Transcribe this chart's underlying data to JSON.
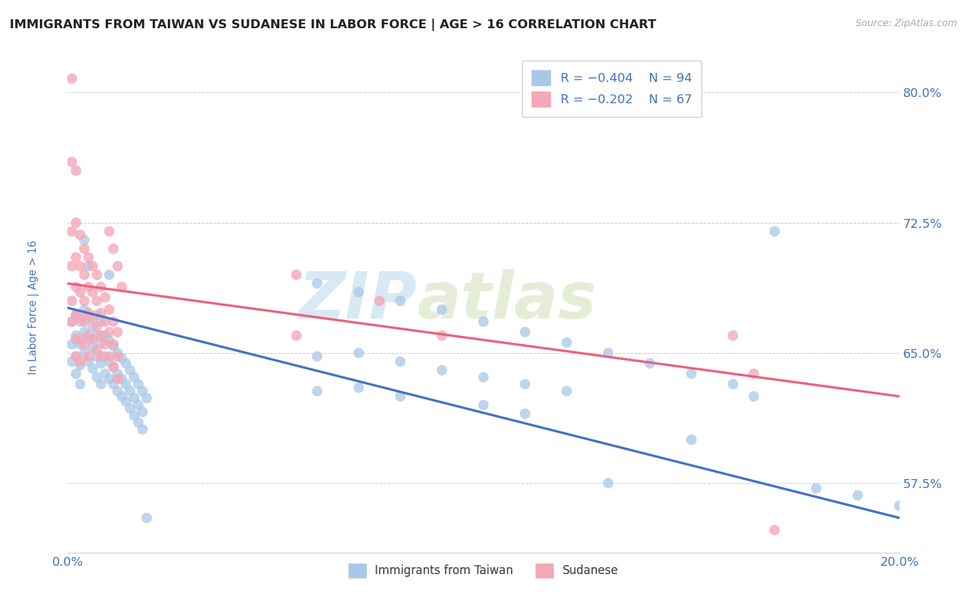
{
  "title": "IMMIGRANTS FROM TAIWAN VS SUDANESE IN LABOR FORCE | AGE > 16 CORRELATION CHART",
  "source": "Source: ZipAtlas.com",
  "ylabel": "In Labor Force | Age > 16",
  "xlim": [
    0.0,
    0.2
  ],
  "ylim": [
    0.535,
    0.825
  ],
  "yticks": [
    0.575,
    0.65,
    0.725,
    0.8
  ],
  "ytick_labels": [
    "57.5%",
    "65.0%",
    "72.5%",
    "80.0%"
  ],
  "xticks": [
    0.0,
    0.2
  ],
  "xtick_labels": [
    "0.0%",
    "20.0%"
  ],
  "legend_label1": "Immigrants from Taiwan",
  "legend_label2": "Sudanese",
  "taiwan_color": "#a8c8e8",
  "sudanese_color": "#f4a8b8",
  "trend_taiwan_color": "#4472c4",
  "trend_sudanese_color": "#e8647a",
  "watermark_zip": "ZIP",
  "watermark_atlas": "atlas",
  "background_color": "#ffffff",
  "grid_color": "#cccccc",
  "title_color": "#333333",
  "tick_color": "#4472c4",
  "taiwan_trend_x": [
    0.0,
    0.2
  ],
  "taiwan_trend_y": [
    0.676,
    0.555
  ],
  "sudanese_trend_x": [
    0.0,
    0.2
  ],
  "sudanese_trend_y": [
    0.69,
    0.625
  ],
  "taiwan_scatter": [
    [
      0.001,
      0.668
    ],
    [
      0.001,
      0.655
    ],
    [
      0.001,
      0.645
    ],
    [
      0.002,
      0.672
    ],
    [
      0.002,
      0.66
    ],
    [
      0.002,
      0.648
    ],
    [
      0.002,
      0.638
    ],
    [
      0.003,
      0.668
    ],
    [
      0.003,
      0.655
    ],
    [
      0.003,
      0.643
    ],
    [
      0.003,
      0.632
    ],
    [
      0.004,
      0.675
    ],
    [
      0.004,
      0.662
    ],
    [
      0.004,
      0.65
    ],
    [
      0.004,
      0.715
    ],
    [
      0.005,
      0.67
    ],
    [
      0.005,
      0.658
    ],
    [
      0.005,
      0.645
    ],
    [
      0.005,
      0.7
    ],
    [
      0.006,
      0.665
    ],
    [
      0.006,
      0.653
    ],
    [
      0.006,
      0.641
    ],
    [
      0.007,
      0.672
    ],
    [
      0.007,
      0.66
    ],
    [
      0.007,
      0.648
    ],
    [
      0.007,
      0.636
    ],
    [
      0.008,
      0.668
    ],
    [
      0.008,
      0.656
    ],
    [
      0.008,
      0.644
    ],
    [
      0.008,
      0.632
    ],
    [
      0.009,
      0.66
    ],
    [
      0.009,
      0.648
    ],
    [
      0.009,
      0.638
    ],
    [
      0.01,
      0.657
    ],
    [
      0.01,
      0.645
    ],
    [
      0.01,
      0.635
    ],
    [
      0.01,
      0.695
    ],
    [
      0.011,
      0.654
    ],
    [
      0.011,
      0.642
    ],
    [
      0.011,
      0.632
    ],
    [
      0.012,
      0.65
    ],
    [
      0.012,
      0.638
    ],
    [
      0.012,
      0.628
    ],
    [
      0.013,
      0.647
    ],
    [
      0.013,
      0.635
    ],
    [
      0.013,
      0.625
    ],
    [
      0.014,
      0.644
    ],
    [
      0.014,
      0.632
    ],
    [
      0.014,
      0.622
    ],
    [
      0.015,
      0.64
    ],
    [
      0.015,
      0.628
    ],
    [
      0.015,
      0.618
    ],
    [
      0.016,
      0.636
    ],
    [
      0.016,
      0.624
    ],
    [
      0.016,
      0.614
    ],
    [
      0.017,
      0.632
    ],
    [
      0.017,
      0.62
    ],
    [
      0.017,
      0.61
    ],
    [
      0.018,
      0.628
    ],
    [
      0.018,
      0.616
    ],
    [
      0.018,
      0.606
    ],
    [
      0.019,
      0.624
    ],
    [
      0.019,
      0.555
    ],
    [
      0.17,
      0.72
    ],
    [
      0.165,
      0.625
    ],
    [
      0.06,
      0.69
    ],
    [
      0.06,
      0.648
    ],
    [
      0.06,
      0.628
    ],
    [
      0.07,
      0.685
    ],
    [
      0.07,
      0.65
    ],
    [
      0.07,
      0.63
    ],
    [
      0.08,
      0.68
    ],
    [
      0.08,
      0.645
    ],
    [
      0.08,
      0.625
    ],
    [
      0.09,
      0.675
    ],
    [
      0.09,
      0.64
    ],
    [
      0.1,
      0.668
    ],
    [
      0.1,
      0.636
    ],
    [
      0.1,
      0.62
    ],
    [
      0.11,
      0.662
    ],
    [
      0.11,
      0.632
    ],
    [
      0.11,
      0.615
    ],
    [
      0.12,
      0.656
    ],
    [
      0.12,
      0.628
    ],
    [
      0.13,
      0.65
    ],
    [
      0.13,
      0.575
    ],
    [
      0.14,
      0.644
    ],
    [
      0.15,
      0.638
    ],
    [
      0.15,
      0.6
    ],
    [
      0.16,
      0.632
    ],
    [
      0.18,
      0.572
    ],
    [
      0.19,
      0.568
    ],
    [
      0.2,
      0.562
    ]
  ],
  "sudanese_scatter": [
    [
      0.001,
      0.808
    ],
    [
      0.001,
      0.76
    ],
    [
      0.001,
      0.72
    ],
    [
      0.001,
      0.7
    ],
    [
      0.001,
      0.68
    ],
    [
      0.001,
      0.668
    ],
    [
      0.002,
      0.755
    ],
    [
      0.002,
      0.725
    ],
    [
      0.002,
      0.705
    ],
    [
      0.002,
      0.688
    ],
    [
      0.002,
      0.672
    ],
    [
      0.002,
      0.658
    ],
    [
      0.002,
      0.648
    ],
    [
      0.003,
      0.718
    ],
    [
      0.003,
      0.7
    ],
    [
      0.003,
      0.685
    ],
    [
      0.003,
      0.67
    ],
    [
      0.003,
      0.658
    ],
    [
      0.003,
      0.645
    ],
    [
      0.004,
      0.71
    ],
    [
      0.004,
      0.695
    ],
    [
      0.004,
      0.68
    ],
    [
      0.004,
      0.668
    ],
    [
      0.004,
      0.655
    ],
    [
      0.005,
      0.705
    ],
    [
      0.005,
      0.688
    ],
    [
      0.005,
      0.673
    ],
    [
      0.005,
      0.66
    ],
    [
      0.005,
      0.648
    ],
    [
      0.006,
      0.7
    ],
    [
      0.006,
      0.685
    ],
    [
      0.006,
      0.67
    ],
    [
      0.006,
      0.658
    ],
    [
      0.007,
      0.695
    ],
    [
      0.007,
      0.68
    ],
    [
      0.007,
      0.665
    ],
    [
      0.007,
      0.652
    ],
    [
      0.008,
      0.688
    ],
    [
      0.008,
      0.673
    ],
    [
      0.008,
      0.66
    ],
    [
      0.008,
      0.648
    ],
    [
      0.009,
      0.682
    ],
    [
      0.009,
      0.668
    ],
    [
      0.009,
      0.655
    ],
    [
      0.01,
      0.675
    ],
    [
      0.01,
      0.662
    ],
    [
      0.01,
      0.648
    ],
    [
      0.01,
      0.72
    ],
    [
      0.011,
      0.668
    ],
    [
      0.011,
      0.655
    ],
    [
      0.011,
      0.642
    ],
    [
      0.011,
      0.71
    ],
    [
      0.012,
      0.662
    ],
    [
      0.012,
      0.648
    ],
    [
      0.012,
      0.635
    ],
    [
      0.012,
      0.7
    ],
    [
      0.013,
      0.688
    ],
    [
      0.055,
      0.695
    ],
    [
      0.055,
      0.66
    ],
    [
      0.075,
      0.68
    ],
    [
      0.09,
      0.66
    ],
    [
      0.16,
      0.66
    ],
    [
      0.165,
      0.638
    ],
    [
      0.17,
      0.548
    ]
  ]
}
